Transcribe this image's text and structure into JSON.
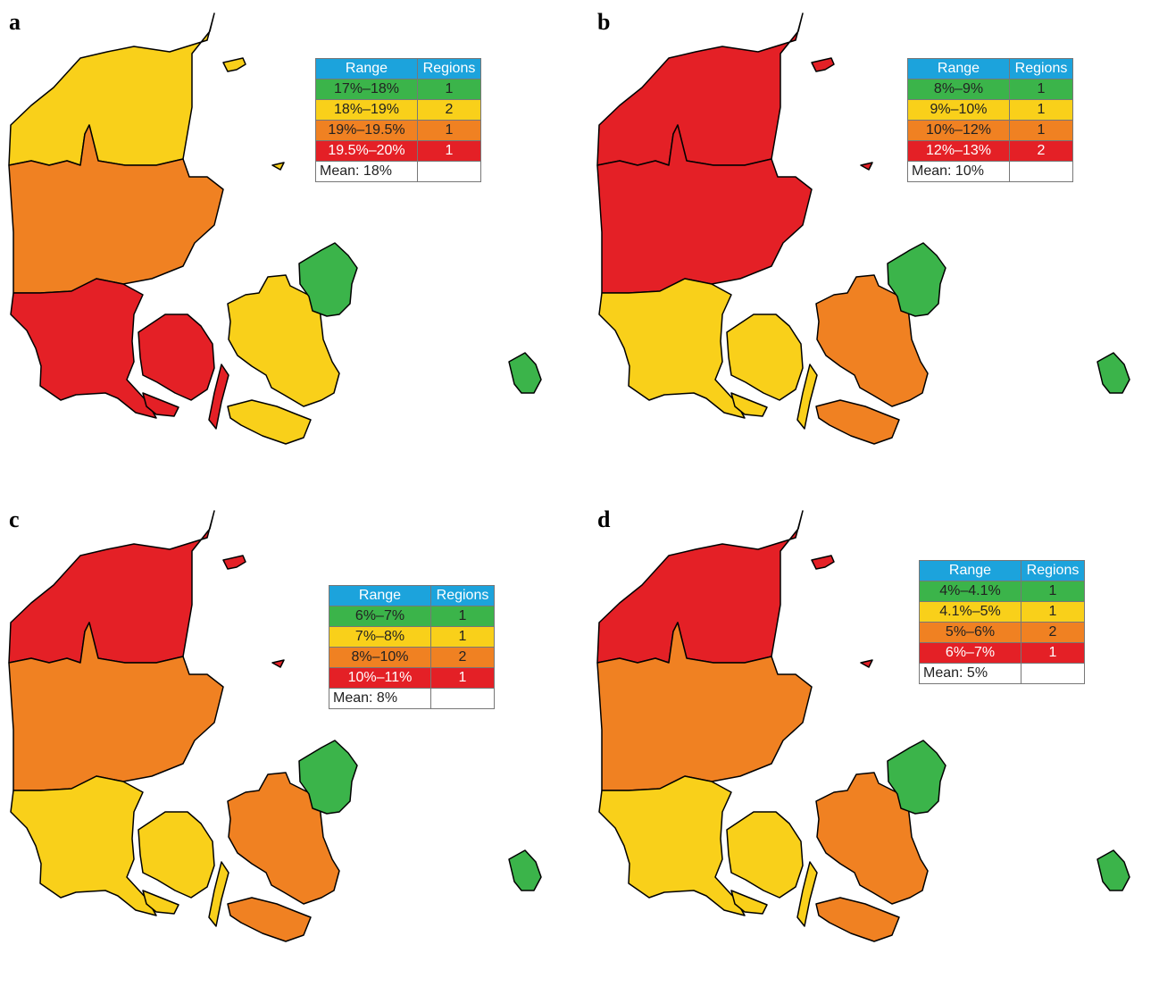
{
  "colors": {
    "green": "#3bb44a",
    "yellow": "#f9d01a",
    "orange": "#f08122",
    "red": "#e42026",
    "header": "#1ca3dc"
  },
  "headers": {
    "range": "Range",
    "regions": "Regions"
  },
  "panels": [
    {
      "letter": "a",
      "region_colors": {
        "nordjylland": "yellow",
        "midtjylland": "orange",
        "syddanmark": "red",
        "sjaelland": "yellow",
        "hovedstaden": "green"
      },
      "legend": [
        {
          "range": "17%–18%",
          "regions": "1",
          "color": "green"
        },
        {
          "range": "18%–19%",
          "regions": "2",
          "color": "yellow"
        },
        {
          "range": "19%–19.5%",
          "regions": "1",
          "color": "orange"
        },
        {
          "range": "19.5%–20%",
          "regions": "1",
          "color": "red"
        }
      ],
      "mean": "Mean: 18%"
    },
    {
      "letter": "b",
      "region_colors": {
        "nordjylland": "red",
        "midtjylland": "red",
        "syddanmark": "yellow",
        "sjaelland": "orange",
        "hovedstaden": "green"
      },
      "legend": [
        {
          "range": "8%–9%",
          "regions": "1",
          "color": "green"
        },
        {
          "range": "9%–10%",
          "regions": "1",
          "color": "yellow"
        },
        {
          "range": "10%–12%",
          "regions": "1",
          "color": "orange"
        },
        {
          "range": "12%–13%",
          "regions": "2",
          "color": "red"
        }
      ],
      "mean": "Mean: 10%"
    },
    {
      "letter": "c",
      "region_colors": {
        "nordjylland": "red",
        "midtjylland": "orange",
        "syddanmark": "yellow",
        "sjaelland": "orange",
        "hovedstaden": "green"
      },
      "legend": [
        {
          "range": "6%–7%",
          "regions": "1",
          "color": "green"
        },
        {
          "range": "7%–8%",
          "regions": "1",
          "color": "yellow"
        },
        {
          "range": "8%–10%",
          "regions": "2",
          "color": "orange"
        },
        {
          "range": "10%–11%",
          "regions": "1",
          "color": "red"
        }
      ],
      "mean": "Mean: 8%"
    },
    {
      "letter": "d",
      "region_colors": {
        "nordjylland": "red",
        "midtjylland": "orange",
        "syddanmark": "yellow",
        "sjaelland": "orange",
        "hovedstaden": "green"
      },
      "legend": [
        {
          "range": "4%–4.1%",
          "regions": "1",
          "color": "green"
        },
        {
          "range": "4.1%–5%",
          "regions": "1",
          "color": "yellow"
        },
        {
          "range": "5%–6%",
          "regions": "2",
          "color": "orange"
        },
        {
          "range": "6%–7%",
          "regions": "1",
          "color": "red"
        }
      ],
      "mean": "Mean: 5%"
    }
  ]
}
